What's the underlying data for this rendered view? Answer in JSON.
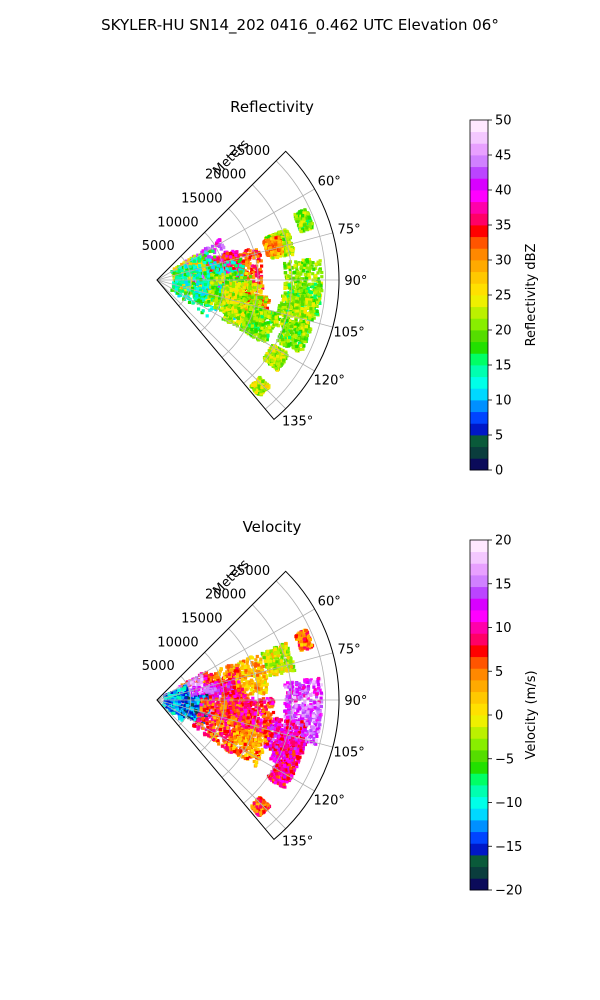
{
  "figure": {
    "title": "SKYLER-HU  SN14_202  0416_0.462 UTC Elevation 06°"
  },
  "chart_data": [
    {
      "type": "polar-sector-image",
      "title": "Reflectivity",
      "radial_axis_label": "Meters",
      "range_tick_labels": [
        "5000",
        "10000",
        "15000",
        "20000",
        "25000"
      ],
      "range_ticks": [
        5000,
        10000,
        15000,
        20000,
        25000
      ],
      "range_max": 27000,
      "azimuth_tick_labels": [
        "60°",
        "75°",
        "90°",
        "105°",
        "120°",
        "135°"
      ],
      "azimuth_ticks_deg": [
        60,
        75,
        90,
        105,
        120,
        135
      ],
      "azimuth_range_deg": [
        45,
        140
      ],
      "grid": true,
      "colorbar": {
        "label": "Reflectivity dBZ",
        "min": 0,
        "max": 50,
        "tick_labels": [
          "0",
          "5",
          "10",
          "15",
          "20",
          "25",
          "30",
          "35",
          "40",
          "45",
          "50"
        ],
        "ticks": [
          0,
          5,
          10,
          15,
          20,
          25,
          30,
          35,
          40,
          45,
          50
        ],
        "colors": [
          "#0b0b5a",
          "#0a3d3d",
          "#0a5a3a",
          "#0018c8",
          "#0044ff",
          "#0090ff",
          "#00d8ff",
          "#00ffe8",
          "#00ffb0",
          "#00ff66",
          "#22e000",
          "#55dd00",
          "#88ee00",
          "#bbf000",
          "#eef000",
          "#ffe000",
          "#ffc800",
          "#ffaa00",
          "#ff8800",
          "#ff5500",
          "#ff0000",
          "#ff0066",
          "#ff00aa",
          "#ff00ff",
          "#d800ff",
          "#bb44ff",
          "#d080ff",
          "#e8a0ff",
          "#f4c8ff",
          "#ffe8ff"
        ]
      },
      "echo_regions": [
        {
          "az": 68,
          "r": 24000,
          "s": 1500,
          "v": 20
        },
        {
          "az": 74,
          "r": 19000,
          "s": 1800,
          "v": 22
        },
        {
          "az": 74,
          "r": 18000,
          "s": 1200,
          "v": 30
        },
        {
          "az": 80,
          "r": 8000,
          "s": 3200,
          "v": 40
        },
        {
          "az": 78,
          "r": 7000,
          "s": 1600,
          "v": 42
        },
        {
          "az": 84,
          "r": 13000,
          "s": 2800,
          "v": 33
        },
        {
          "az": 84,
          "r": 10000,
          "s": 2600,
          "v": 36
        },
        {
          "az": 86,
          "r": 5000,
          "s": 2500,
          "v": 25
        },
        {
          "az": 93,
          "r": 6000,
          "s": 3500,
          "v": 15
        },
        {
          "az": 96,
          "r": 9500,
          "s": 3500,
          "v": 14
        },
        {
          "az": 100,
          "r": 11000,
          "s": 3000,
          "v": 21
        },
        {
          "az": 104,
          "r": 13000,
          "s": 2600,
          "v": 24
        },
        {
          "az": 106,
          "r": 15000,
          "s": 2000,
          "v": 31
        },
        {
          "az": 110,
          "r": 14000,
          "s": 2600,
          "v": 22
        },
        {
          "az": 113,
          "r": 16500,
          "s": 2200,
          "v": 20
        },
        {
          "az": 90,
          "r": 22000,
          "s": 3000,
          "v": 21
        },
        {
          "az": 98,
          "r": 22000,
          "s": 2500,
          "v": 19
        },
        {
          "az": 104,
          "r": 21000,
          "s": 2500,
          "v": 22
        },
        {
          "az": 112,
          "r": 22000,
          "s": 2000,
          "v": 20
        },
        {
          "az": 123,
          "r": 21000,
          "s": 1400,
          "v": 22
        },
        {
          "az": 136,
          "r": 22000,
          "s": 1000,
          "v": 23
        }
      ]
    },
    {
      "type": "polar-sector-image",
      "title": "Velocity",
      "radial_axis_label": "Meters",
      "range_tick_labels": [
        "5000",
        "10000",
        "15000",
        "20000",
        "25000"
      ],
      "range_ticks": [
        5000,
        10000,
        15000,
        20000,
        25000
      ],
      "range_max": 27000,
      "azimuth_tick_labels": [
        "60°",
        "75°",
        "90°",
        "105°",
        "120°",
        "135°"
      ],
      "azimuth_ticks_deg": [
        60,
        75,
        90,
        105,
        120,
        135
      ],
      "azimuth_range_deg": [
        45,
        140
      ],
      "grid": true,
      "colorbar": {
        "label": "Velocity (m/s)",
        "min": -20,
        "max": 20,
        "tick_labels": [
          "−20",
          "−15",
          "−10",
          "−5",
          "0",
          "5",
          "10",
          "15",
          "20"
        ],
        "ticks": [
          -20,
          -15,
          -10,
          -5,
          0,
          5,
          10,
          15,
          20
        ],
        "colors": [
          "#0b0b5a",
          "#0a3d3d",
          "#0a5a3a",
          "#0018c8",
          "#0044ff",
          "#0090ff",
          "#00d8ff",
          "#00ffe8",
          "#00ffb0",
          "#00ff66",
          "#22e000",
          "#55dd00",
          "#88ee00",
          "#bbf000",
          "#eef000",
          "#ffe000",
          "#ffc800",
          "#ffaa00",
          "#ff8800",
          "#ff5500",
          "#ff0000",
          "#ff0066",
          "#ff00aa",
          "#ff00ff",
          "#d800ff",
          "#bb44ff",
          "#d080ff",
          "#e8a0ff",
          "#f4c8ff",
          "#ffe8ff"
        ]
      },
      "echo_regions": [
        {
          "az": 68,
          "r": 24000,
          "s": 1400,
          "v": 5
        },
        {
          "az": 72,
          "r": 19000,
          "s": 2000,
          "v": -1
        },
        {
          "az": 76,
          "r": 14000,
          "s": 2600,
          "v": 2
        },
        {
          "az": 80,
          "r": 10000,
          "s": 2800,
          "v": 5
        },
        {
          "az": 84,
          "r": 6000,
          "s": 2600,
          "v": 8
        },
        {
          "az": 88,
          "r": 10000,
          "s": 2500,
          "v": 10
        },
        {
          "az": 90,
          "r": 5000,
          "s": 2600,
          "v": 16
        },
        {
          "az": 93,
          "r": 7000,
          "s": 2400,
          "v": 14
        },
        {
          "az": 97,
          "r": 3000,
          "s": 1800,
          "v": -12
        },
        {
          "az": 102,
          "r": 6000,
          "s": 1800,
          "v": -14
        },
        {
          "az": 106,
          "r": 10000,
          "s": 3500,
          "v": 7
        },
        {
          "az": 110,
          "r": 12000,
          "s": 3200,
          "v": 6
        },
        {
          "az": 114,
          "r": 15000,
          "s": 2600,
          "v": 4
        },
        {
          "az": 98,
          "r": 15000,
          "s": 2400,
          "v": 8
        },
        {
          "az": 90,
          "r": 22000,
          "s": 3000,
          "v": 14
        },
        {
          "az": 99,
          "r": 22000,
          "s": 2600,
          "v": 15
        },
        {
          "az": 106,
          "r": 20000,
          "s": 2600,
          "v": 11
        },
        {
          "az": 112,
          "r": 21000,
          "s": 2000,
          "v": 10
        },
        {
          "az": 121,
          "r": 21500,
          "s": 1500,
          "v": 9
        },
        {
          "az": 136,
          "r": 22000,
          "s": 1000,
          "v": 6
        }
      ]
    }
  ]
}
